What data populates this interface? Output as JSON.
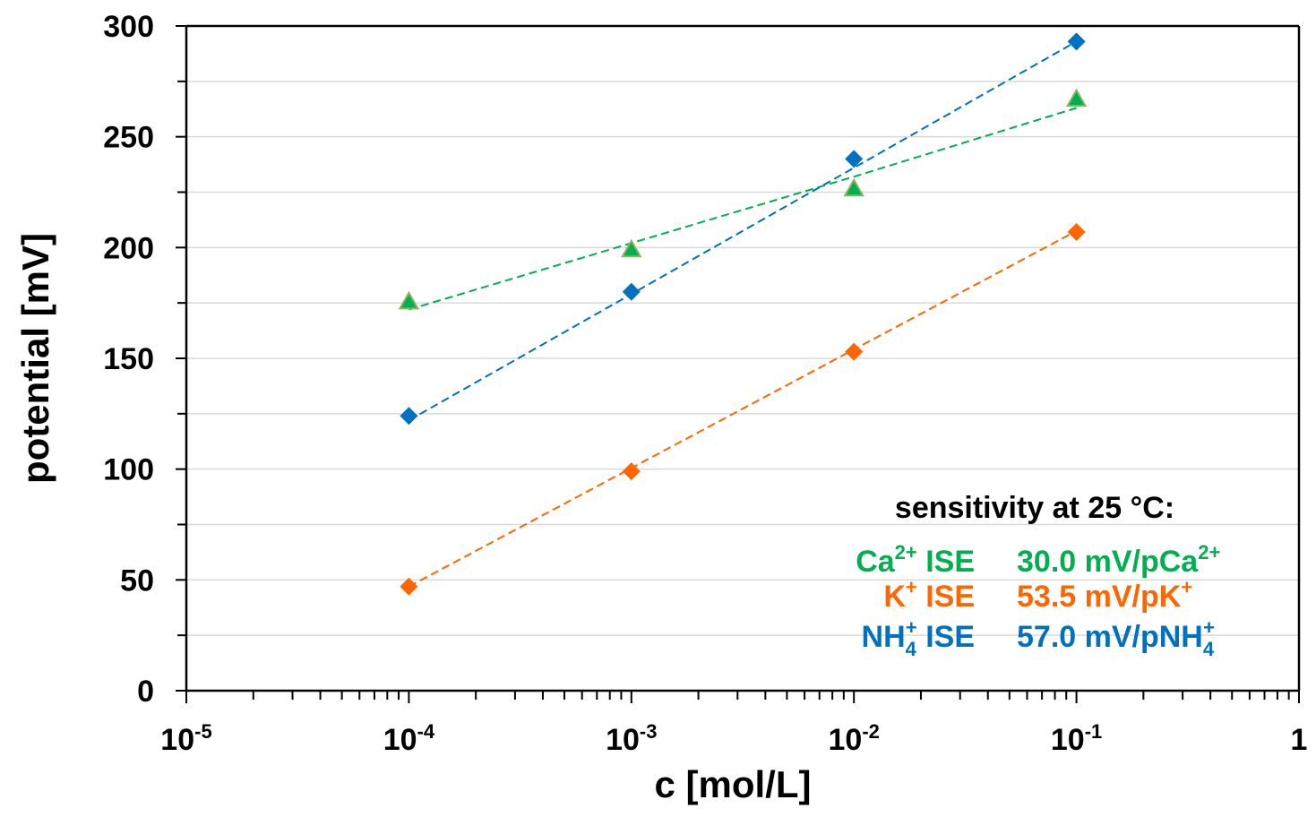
{
  "chart_data": {
    "type": "scatter",
    "title": "",
    "xlabel": "c [mol/L]",
    "ylabel": "potential [mV]",
    "xscale": "log",
    "xlim": [
      1e-05,
      1
    ],
    "ylim": [
      0,
      300
    ],
    "grid": "horizontal",
    "y_ticks": [
      0,
      50,
      100,
      150,
      200,
      250,
      300
    ],
    "x_ticks": [
      {
        "value": 1e-05,
        "base": "10",
        "exp": "-5"
      },
      {
        "value": 0.0001,
        "base": "10",
        "exp": "-4"
      },
      {
        "value": 0.001,
        "base": "10",
        "exp": "-3"
      },
      {
        "value": 0.01,
        "base": "10",
        "exp": "-2"
      },
      {
        "value": 0.1,
        "base": "10",
        "exp": "-1"
      },
      {
        "value": 1,
        "base": "1",
        "exp": ""
      }
    ],
    "x": [
      0.0001,
      0.001,
      0.01,
      0.1
    ],
    "series": [
      {
        "name": "Ca2+ ISE",
        "marker": "triangle",
        "color": "#00B050",
        "edge_color": "#8DB360",
        "values": [
          175.5,
          199,
          226.5,
          267
        ],
        "trend": [
          172,
          202,
          232,
          263
        ]
      },
      {
        "name": "K+ ISE",
        "marker": "diamond",
        "color": "#FF6600",
        "values": [
          47,
          99,
          153,
          207
        ],
        "trend": [
          47,
          100.5,
          154,
          207.5
        ]
      },
      {
        "name": "NH4+ ISE",
        "marker": "diamond",
        "color": "#0070C0",
        "values": [
          124,
          180,
          240,
          293
        ],
        "trend": [
          122,
          179,
          236,
          293
        ]
      }
    ],
    "annotation": {
      "heading": "sensitivity at 25 °C:",
      "rows": [
        {
          "ion": "Ca",
          "ion_sup": "2+",
          "ion_sub": "",
          "ise": "ISE",
          "value": "30.0 mV/pCa",
          "value_sub": "",
          "value_sup": "2+",
          "color": "#00B050"
        },
        {
          "ion": "K",
          "ion_sup": "+",
          "ion_sub": "",
          "ise": "ISE",
          "value": "53.5 mV/pK",
          "value_sub": "",
          "value_sup": "+",
          "color": "#FF6600"
        },
        {
          "ion": "NH",
          "ion_sup": "+",
          "ion_sub": "4",
          "ise": "ISE",
          "value": "57.0 mV/pNH",
          "value_sub": "4",
          "value_sup": "+",
          "color": "#0070C0"
        }
      ]
    }
  }
}
